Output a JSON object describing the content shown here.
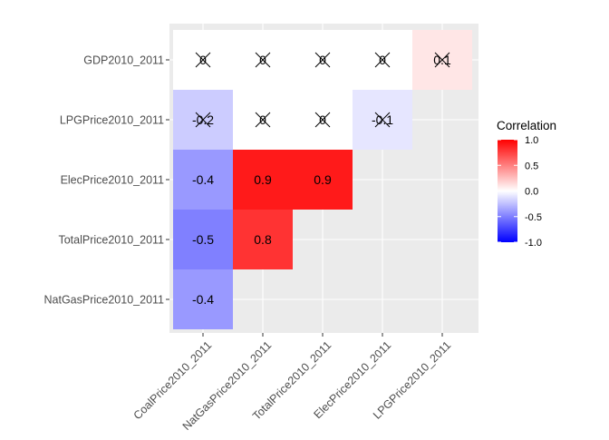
{
  "chart_data": {
    "type": "heatmap",
    "title": "",
    "xlabel": "",
    "ylabel": "",
    "x_categories": [
      "CoalPrice2010_2011",
      "NatGasPrice2010_2011",
      "TotalPrice2010_2011",
      "ElecPrice2010_2011",
      "LPGPrice2010_2011"
    ],
    "y_categories": [
      "GDP2010_2011",
      "LPGPrice2010_2011",
      "ElecPrice2010_2011",
      "TotalPrice2010_2011",
      "NatGasPrice2010_2011"
    ],
    "cells": [
      {
        "x": "CoalPrice2010_2011",
        "y": "GDP2010_2011",
        "value": 0.0,
        "label": "0",
        "crossed": true
      },
      {
        "x": "NatGasPrice2010_2011",
        "y": "GDP2010_2011",
        "value": 0.0,
        "label": "0",
        "crossed": true
      },
      {
        "x": "TotalPrice2010_2011",
        "y": "GDP2010_2011",
        "value": 0.0,
        "label": "0",
        "crossed": true
      },
      {
        "x": "ElecPrice2010_2011",
        "y": "GDP2010_2011",
        "value": 0.0,
        "label": "0",
        "crossed": true
      },
      {
        "x": "LPGPrice2010_2011",
        "y": "GDP2010_2011",
        "value": 0.1,
        "label": "0.1",
        "crossed": true
      },
      {
        "x": "CoalPrice2010_2011",
        "y": "LPGPrice2010_2011",
        "value": -0.2,
        "label": "-0.2",
        "crossed": true
      },
      {
        "x": "NatGasPrice2010_2011",
        "y": "LPGPrice2010_2011",
        "value": 0.0,
        "label": "0",
        "crossed": true
      },
      {
        "x": "TotalPrice2010_2011",
        "y": "LPGPrice2010_2011",
        "value": 0.0,
        "label": "0",
        "crossed": true
      },
      {
        "x": "ElecPrice2010_2011",
        "y": "LPGPrice2010_2011",
        "value": -0.1,
        "label": "-0.1",
        "crossed": true
      },
      {
        "x": "CoalPrice2010_2011",
        "y": "ElecPrice2010_2011",
        "value": -0.4,
        "label": "-0.4",
        "crossed": false
      },
      {
        "x": "NatGasPrice2010_2011",
        "y": "ElecPrice2010_2011",
        "value": 0.9,
        "label": "0.9",
        "crossed": false
      },
      {
        "x": "TotalPrice2010_2011",
        "y": "ElecPrice2010_2011",
        "value": 0.9,
        "label": "0.9",
        "crossed": false
      },
      {
        "x": "CoalPrice2010_2011",
        "y": "TotalPrice2010_2011",
        "value": -0.5,
        "label": "-0.5",
        "crossed": false
      },
      {
        "x": "NatGasPrice2010_2011",
        "y": "TotalPrice2010_2011",
        "value": 0.8,
        "label": "0.8",
        "crossed": false
      },
      {
        "x": "CoalPrice2010_2011",
        "y": "NatGasPrice2010_2011",
        "value": -0.4,
        "label": "-0.4",
        "crossed": false
      }
    ],
    "color_scale": {
      "low": "#0000FF",
      "mid": "#FFFFFF",
      "high": "#FF0000",
      "limits": [
        -1,
        1
      ]
    },
    "legend": {
      "title": "Correlation",
      "position": "right",
      "tick_labels": [
        "1.0",
        "0.5",
        "0.0",
        "-0.5",
        "-1.0"
      ],
      "tick_values": [
        1.0,
        0.5,
        0.0,
        -0.5,
        -1.0
      ]
    },
    "grid": true,
    "panel_background": "#EBEBEB",
    "grid_color": "#FFFFFF"
  }
}
